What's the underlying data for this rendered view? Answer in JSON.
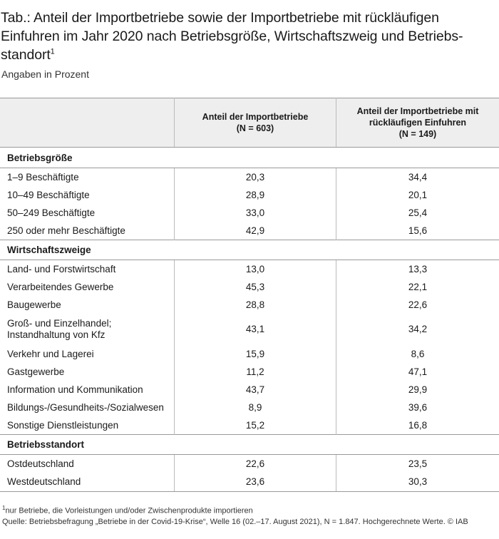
{
  "title": "Tab.: Anteil der Importbetriebe sowie der Importbetriebe mit rückläufigen Einfuhren im Jahr 2020 nach Betriebsgröße, Wirtschaftszweig und Betriebs-standort",
  "title_line1": "Tab.: Anteil der Importbetriebe sowie der Importbetriebe mit rückläufigen",
  "title_line2": "Einfuhren im Jahr 2020 nach Betriebsgröße, Wirtschaftszweig und Betriebs-",
  "title_line3": "standort",
  "title_sup": "1",
  "subtitle": "Angaben in Prozent",
  "header": {
    "col1_line1": "Anteil der Importbetriebe",
    "col1_line2": "(N = 603)",
    "col2_line1": "Anteil der Importbetriebe mit",
    "col2_line2": "rückläufigen Einfuhren",
    "col2_line3": "(N = 149)"
  },
  "sections": [
    {
      "title": "Betriebsgröße",
      "rows": [
        {
          "label": "1–9 Beschäftigte",
          "v1": "20,3",
          "v2": "34,4"
        },
        {
          "label": "10–49 Beschäftigte",
          "v1": "28,9",
          "v2": "20,1"
        },
        {
          "label": "50–249 Beschäftigte",
          "v1": "33,0",
          "v2": "25,4"
        },
        {
          "label": "250 oder mehr Beschäftigte",
          "v1": "42,9",
          "v2": "15,6"
        }
      ]
    },
    {
      "title": "Wirtschaftszweige",
      "rows": [
        {
          "label": "Land- und Forstwirtschaft",
          "v1": "13,0",
          "v2": "13,3"
        },
        {
          "label": "Verarbeitendes Gewerbe",
          "v1": "45,3",
          "v2": "22,1"
        },
        {
          "label": "Baugewerbe",
          "v1": "28,8",
          "v2": "22,6"
        },
        {
          "label": "Groß- und Einzelhandel;",
          "label2": "Instandhaltung von Kfz",
          "v1": "43,1",
          "v2": "34,2"
        },
        {
          "label": "Verkehr und Lagerei",
          "v1": "15,9",
          "v2": "8,6"
        },
        {
          "label": "Gastgewerbe",
          "v1": "11,2",
          "v2": "47,1"
        },
        {
          "label": "Information und Kommunikation",
          "v1": "43,7",
          "v2": "29,9"
        },
        {
          "label": "Bildungs-/Gesundheits-/Sozialwesen",
          "v1": "8,9",
          "v2": "39,6"
        },
        {
          "label": "Sonstige Dienstleistungen",
          "v1": "15,2",
          "v2": "16,8"
        }
      ]
    },
    {
      "title": "Betriebsstandort",
      "rows": [
        {
          "label": "Ostdeutschland",
          "v1": "22,6",
          "v2": "23,5"
        },
        {
          "label": "Westdeutschland",
          "v1": "23,6",
          "v2": "30,3"
        }
      ]
    }
  ],
  "footnote_mark": "1",
  "footnote": "nur Betriebe, die Vorleistungen und/oder Zwischenprodukte importieren",
  "source": "Quelle: Betriebsbefragung „Betriebe in der Covid-19-Krise“, Welle 16 (02.–17. August 2021), N = 1.847. Hochgerechnete Werte. © IAB"
}
